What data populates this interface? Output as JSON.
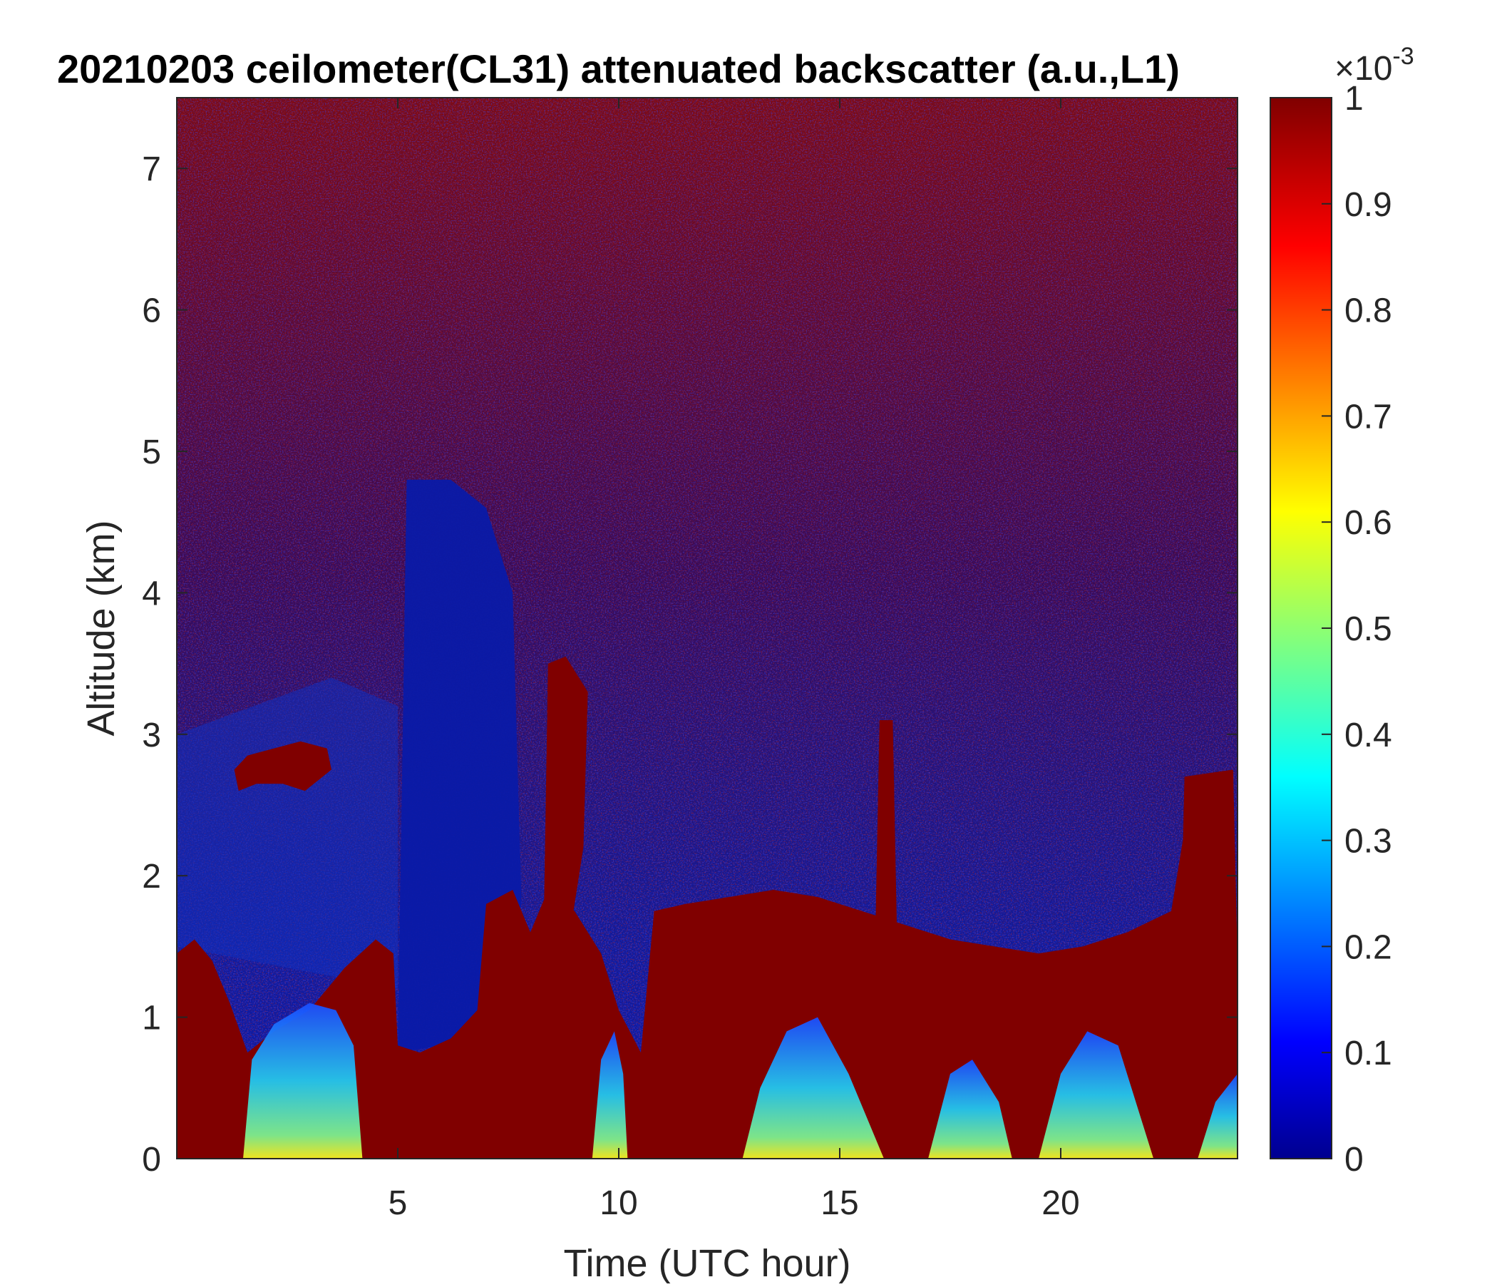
{
  "chart_data": {
    "type": "heatmap",
    "title": "20210203 ceilometer(CL31) attenuated backscatter (a.u.,L1)",
    "xlabel": "Time (UTC hour)",
    "ylabel": "Altitude (km)",
    "xlim": [
      0,
      24
    ],
    "ylim": [
      0,
      7.5
    ],
    "x_ticks": [
      5,
      10,
      15,
      20
    ],
    "y_ticks": [
      0,
      1,
      2,
      3,
      4,
      5,
      6,
      7
    ],
    "colorbar": {
      "colormap": "jet",
      "range": [
        0,
        1
      ],
      "ticks": [
        0,
        0.1,
        0.2,
        0.3,
        0.4,
        0.5,
        0.6,
        0.7,
        0.8,
        0.9,
        1
      ],
      "exponent_base": "×10",
      "exponent_power": "-3"
    },
    "features": [
      {
        "name": "near-surface high-backscatter layer",
        "x_range": [
          0,
          24
        ],
        "top_km_approx": 1.2
      },
      {
        "name": "cloud layer early morning",
        "x_range": [
          1.3,
          3.5
        ],
        "altitude_km": [
          2.6,
          2.9
        ]
      },
      {
        "name": "low-signal gap",
        "x_range": [
          5.0,
          7.2
        ],
        "altitude_km": [
          0.7,
          4.5
        ]
      },
      {
        "name": "cloud tower",
        "x_range": [
          8.3,
          9.3
        ],
        "altitude_km": [
          1.5,
          3.5
        ]
      },
      {
        "name": "boundary layer top",
        "x_range": [
          10.8,
          19
        ],
        "altitude_km": [
          1.4,
          1.9
        ]
      },
      {
        "name": "tall cloud columns late day",
        "x_range": [
          22.5,
          24
        ],
        "altitude_km": [
          0,
          2.7
        ]
      }
    ]
  }
}
